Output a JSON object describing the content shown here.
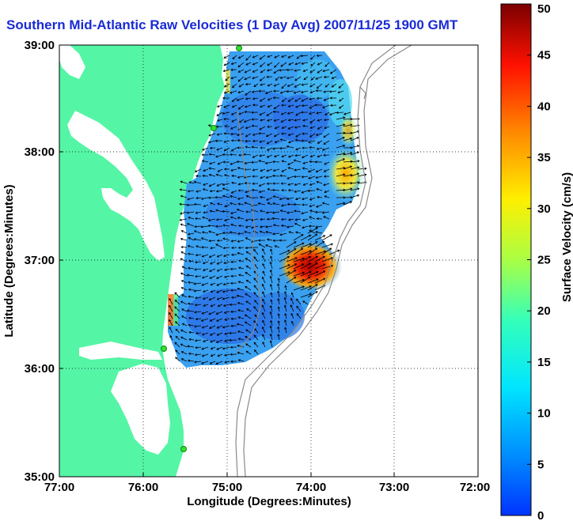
{
  "title": "Southern Mid-Atlantic Raw Velocities (1 Day Avg) 2007/11/25 1900 GMT",
  "axes": {
    "xlabel": "Longitude (Degrees:Minutes)",
    "ylabel": "Latitude (Degrees:Minutes)",
    "xticks": [
      "77:00",
      "76:00",
      "75:00",
      "74:00",
      "73:00",
      "72:00"
    ],
    "yticks": [
      "39:00",
      "38:00",
      "37:00",
      "36:00",
      "35:00"
    ]
  },
  "colorbar": {
    "label": "Surface Velocity (cm/s)",
    "ticks": [
      "50",
      "45",
      "40",
      "35",
      "30",
      "25",
      "20",
      "15",
      "10",
      "5",
      "0"
    ],
    "min": 0,
    "max": 50,
    "colormap": "jet"
  },
  "colors": {
    "land": "#55f5a6",
    "title": "#1a2bd6",
    "bathymetry": "#8a8a8a",
    "station": "#33dd33"
  },
  "chart_data": {
    "type": "heatmap",
    "title": "Southern Mid-Atlantic Raw Velocities (1 Day Avg) 2007/11/25 1900 GMT",
    "xlabel": "Longitude (Degrees:Minutes)",
    "ylabel": "Latitude (Degrees:Minutes)",
    "xlim": [
      -77,
      -72
    ],
    "ylim": [
      35,
      39
    ],
    "grid": true,
    "colorbar_range": [
      0,
      50
    ],
    "hotspots": [
      {
        "lon": -74.0,
        "lat": 36.95,
        "speed": 45
      },
      {
        "lon": -73.55,
        "lat": 37.8,
        "speed": 28
      },
      {
        "lon": -73.5,
        "lat": 38.3,
        "speed": 22
      }
    ],
    "typical_speed": 8
  }
}
